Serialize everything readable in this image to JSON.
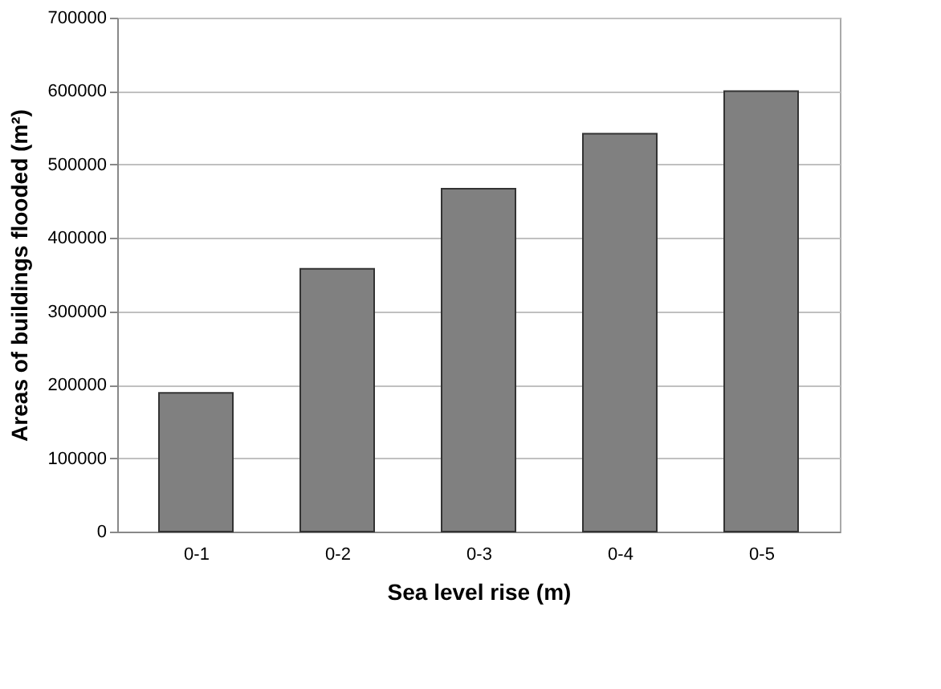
{
  "chart_data": {
    "type": "bar",
    "xlabel": "Sea level rise (m)",
    "ylabel": "Areas of buildings flooded (m²)",
    "categories": [
      "0-1",
      "0-2",
      "0-3",
      "0-4",
      "0-5"
    ],
    "values": [
      189000,
      358000,
      467000,
      542000,
      600000
    ],
    "color": "#808080",
    "ylim": [
      0,
      700000
    ],
    "yticks": [
      0,
      100000,
      200000,
      300000,
      400000,
      500000,
      600000,
      700000
    ],
    "grid": "y"
  }
}
